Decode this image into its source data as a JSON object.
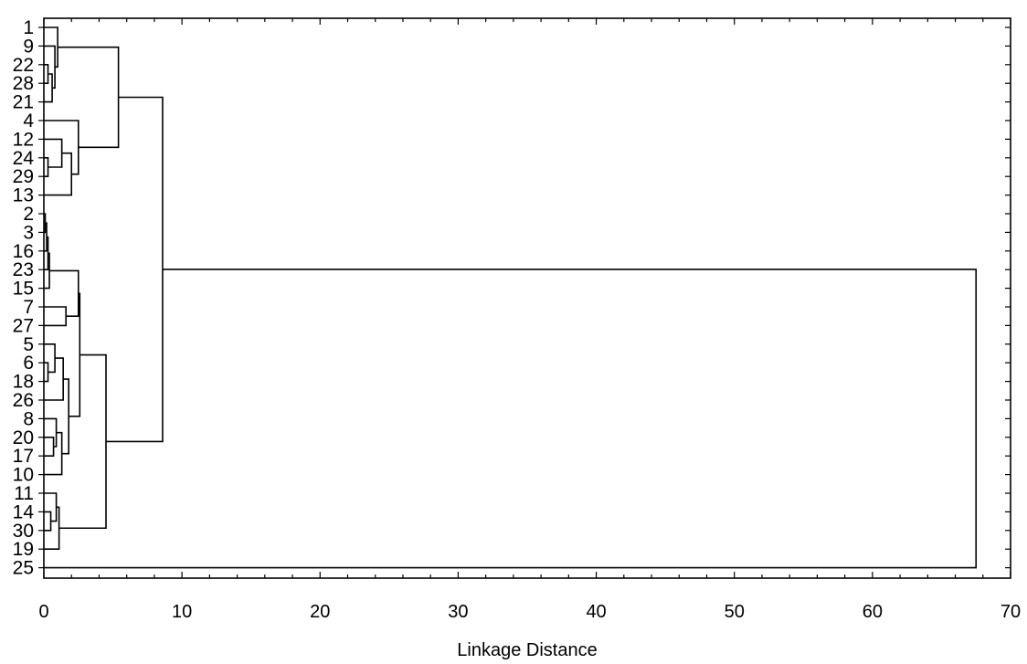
{
  "chart_data": {
    "type": "dendrogram",
    "orientation": "horizontal",
    "xlabel": "Linkage Distance",
    "xlim": [
      0,
      70
    ],
    "x_ticks": [
      0,
      10,
      20,
      30,
      40,
      50,
      60,
      70
    ],
    "grid": false,
    "leaves": [
      "1",
      "9",
      "22",
      "28",
      "21",
      "4",
      "12",
      "24",
      "29",
      "13",
      "2",
      "3",
      "16",
      "23",
      "15",
      "7",
      "27",
      "5",
      "6",
      "18",
      "26",
      "8",
      "20",
      "17",
      "10",
      "11",
      "14",
      "30",
      "19",
      "25"
    ],
    "merges": [
      {
        "a": "L:22",
        "b": "L:28",
        "height": 0.3,
        "id": "m1"
      },
      {
        "a": "m1",
        "b": "L:21",
        "height": 0.6,
        "id": "m2"
      },
      {
        "a": "L:9",
        "b": "m2",
        "height": 0.8,
        "id": "m3"
      },
      {
        "a": "L:1",
        "b": "m3",
        "height": 1.0,
        "id": "m4"
      },
      {
        "a": "L:24",
        "b": "L:29",
        "height": 0.3,
        "id": "m5"
      },
      {
        "a": "L:12",
        "b": "m5",
        "height": 1.3,
        "id": "m6"
      },
      {
        "a": "m6",
        "b": "L:13",
        "height": 2.0,
        "id": "m7"
      },
      {
        "a": "L:4",
        "b": "m7",
        "height": 2.5,
        "id": "m8"
      },
      {
        "a": "m4",
        "b": "m8",
        "height": 5.4,
        "id": "m9"
      },
      {
        "a": "L:2",
        "b": "L:3",
        "height": 0.1,
        "id": "m10"
      },
      {
        "a": "m10",
        "b": "L:16",
        "height": 0.2,
        "id": "m11"
      },
      {
        "a": "m11",
        "b": "L:23",
        "height": 0.3,
        "id": "m12"
      },
      {
        "a": "m12",
        "b": "L:15",
        "height": 0.4,
        "id": "m13"
      },
      {
        "a": "L:7",
        "b": "L:27",
        "height": 1.6,
        "id": "m14"
      },
      {
        "a": "m13",
        "b": "m14",
        "height": 2.5,
        "id": "m15"
      },
      {
        "a": "L:6",
        "b": "L:18",
        "height": 0.3,
        "id": "m16"
      },
      {
        "a": "L:5",
        "b": "m16",
        "height": 0.8,
        "id": "m17"
      },
      {
        "a": "m17",
        "b": "L:26",
        "height": 1.4,
        "id": "m18"
      },
      {
        "a": "L:20",
        "b": "L:17",
        "height": 0.7,
        "id": "m19"
      },
      {
        "a": "L:8",
        "b": "m19",
        "height": 0.9,
        "id": "m20"
      },
      {
        "a": "m20",
        "b": "L:10",
        "height": 1.3,
        "id": "m21"
      },
      {
        "a": "m18",
        "b": "m21",
        "height": 1.8,
        "id": "m22"
      },
      {
        "a": "m15",
        "b": "m22",
        "height": 2.6,
        "id": "m23"
      },
      {
        "a": "L:14",
        "b": "L:30",
        "height": 0.5,
        "id": "m24"
      },
      {
        "a": "L:11",
        "b": "m24",
        "height": 0.9,
        "id": "m25"
      },
      {
        "a": "m25",
        "b": "L:19",
        "height": 1.1,
        "id": "m26"
      },
      {
        "a": "m23",
        "b": "m26",
        "height": 4.5,
        "id": "m27"
      },
      {
        "a": "m9",
        "b": "m27",
        "height": 8.6,
        "id": "m28"
      },
      {
        "a": "m28",
        "b": "L:25",
        "height": 67.5,
        "id": "m29"
      }
    ]
  }
}
